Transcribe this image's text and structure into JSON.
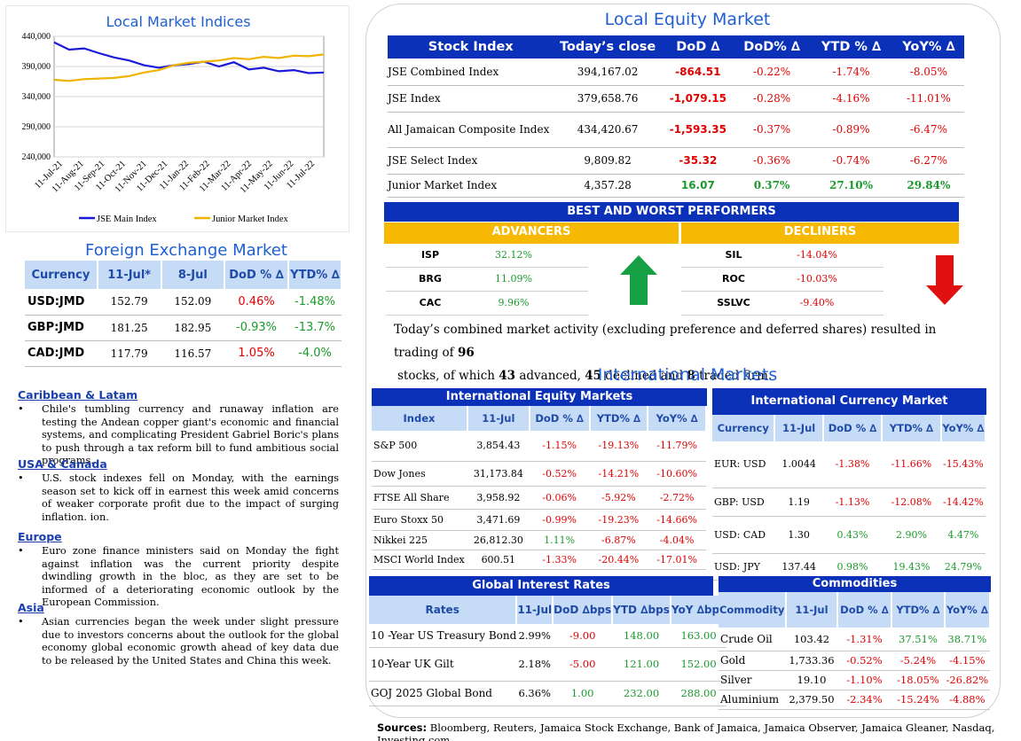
{
  "colors": {
    "dark_blue": "#0b31b8",
    "light_blue": "#c6dbf5",
    "gold": "#f6b800",
    "negative": "#e00000",
    "positive": "#1a9a2a",
    "jse_line": "#1a1ad8",
    "junior_line": "#f0b400"
  },
  "indices_chart": {
    "title": "Local Market Indices"
  },
  "chart_data": {
    "type": "line",
    "title": "Local Market Indices",
    "x_ticks": [
      "11-Jul-21",
      "11-Aug-21",
      "11-Sep-21",
      "11-Oct-21",
      "11-Nov-21",
      "11-Dec-21",
      "11-Jan-22",
      "11-Feb-22",
      "11-Mar-22",
      "11-Apr-22",
      "11-May-22",
      "11-Jun-22",
      "11-Jul-22"
    ],
    "y_ticks": [
      "440,000",
      "390,000",
      "340,000",
      "290,000",
      "240,000"
    ],
    "ylim": [
      240000,
      440000
    ],
    "grid": true,
    "legend_position": "bottom",
    "series": [
      {
        "name": "JSE Main Index",
        "values": [
          430000,
          418000,
          420000,
          412000,
          405000,
          400000,
          392000,
          388000,
          392000,
          394000,
          398000,
          390000,
          397000,
          385000,
          388000,
          382000,
          384000,
          379000,
          380000
        ]
      },
      {
        "name": "Junior Market Index",
        "values": [
          368000,
          366000,
          369000,
          370000,
          371000,
          374000,
          380000,
          384000,
          392000,
          396000,
          398000,
          400000,
          404000,
          402000,
          406000,
          404000,
          408000,
          407000,
          410000
        ]
      }
    ]
  },
  "equity": {
    "title": "Local Equity Market",
    "headers": [
      "Stock Index",
      "Today’s close",
      "DoD  ∆",
      "DoD% ∆",
      "YTD % ∆",
      "YoY% ∆"
    ],
    "rows": [
      {
        "name": "JSE Combined Index",
        "close": "394,167.02",
        "dod": "-864.51",
        "dodp": "-0.22%",
        "ytd": "-1.74%",
        "yoy": "-8.05%",
        "s": [
          "neg",
          "neg",
          "neg",
          "neg"
        ]
      },
      {
        "name": "JSE Index",
        "close": "379,658.76",
        "dod": "-1,079.15",
        "dodp": "-0.28%",
        "ytd": "-4.16%",
        "yoy": "-11.01%",
        "s": [
          "neg",
          "neg",
          "neg",
          "neg"
        ]
      },
      {
        "name": "All Jamaican Composite Index",
        "close": "434,420.67",
        "dod": "-1,593.35",
        "dodp": "-0.37%",
        "ytd": "-0.89%",
        "yoy": "-6.47%",
        "s": [
          "neg",
          "neg",
          "neg",
          "neg"
        ]
      },
      {
        "name": "JSE Select Index",
        "close": "9,809.82",
        "dod": "-35.32",
        "dodp": "-0.36%",
        "ytd": "-0.74%",
        "yoy": "-6.27%",
        "s": [
          "neg",
          "neg",
          "neg",
          "neg"
        ]
      },
      {
        "name": "Junior Market Index",
        "close": "4,357.28",
        "dod": "16.07",
        "dodp": "0.37%",
        "ytd": "27.10%",
        "yoy": "29.84%",
        "s": [
          "pos",
          "pos",
          "pos",
          "pos"
        ]
      }
    ]
  },
  "performers": {
    "title": "BEST AND WORST PERFORMERS",
    "advancers_label": "ADVANCERS",
    "decliners_label": "DECLINERS",
    "advancers": [
      {
        "sym": "ISP",
        "pct": "32.12%"
      },
      {
        "sym": "BRG",
        "pct": "11.09%"
      },
      {
        "sym": "CAC",
        "pct": "9.96%"
      }
    ],
    "decliners": [
      {
        "sym": "SIL",
        "pct": "-14.04%"
      },
      {
        "sym": "ROC",
        "pct": "-10.03%"
      },
      {
        "sym": "SSLVC",
        "pct": "-9.40%"
      }
    ]
  },
  "activity": {
    "p1": "Today’s combined market activity (excluding preference and deferred shares) resulted in trading of ",
    "n_stocks": "96",
    "p2": "stocks, of which ",
    "n_adv": "43",
    "p3": " advanced, ",
    "n_dec": "45",
    "p4": " declined and ",
    "n_firm": "8",
    "p5": " traded firm."
  },
  "fx": {
    "title": "Foreign Exchange Market",
    "headers": [
      "Currency",
      "11-Jul*",
      "8-Jul",
      "DoD % ∆",
      "YTD% ∆"
    ],
    "rows": [
      {
        "pair": "USD:JMD",
        "a": "152.79",
        "b": "152.09",
        "dod": "0.46%",
        "ytd": "-1.48%",
        "s": [
          "neg",
          "pos"
        ]
      },
      {
        "pair": "GBP:JMD",
        "a": "181.25",
        "b": "182.95",
        "dod": "-0.93%",
        "ytd": "-13.7%",
        "s": [
          "pos",
          "pos"
        ]
      },
      {
        "pair": "CAD:JMD",
        "a": "117.79",
        "b": "116.57",
        "dod": "1.05%",
        "ytd": "-4.0%",
        "s": [
          "neg",
          "pos"
        ]
      }
    ]
  },
  "news": [
    {
      "head": "Caribbean & Latam",
      "body": "Chile's tumbling currency and runaway inflation are testing the Andean copper giant's economic and financial systems, and complicating President Gabriel Boric's plans to push through a tax reform bill to fund ambitious social programs."
    },
    {
      "head": "USA & Canada",
      "body": "U.S. stock indexes fell on Monday, with the earnings season set to kick off in earnest this week amid concerns of weaker corporate profit due to the impact of surging inflation. ion."
    },
    {
      "head": "Europe",
      "body": "Euro zone finance ministers said on Monday the fight against inflation was the current priority despite dwindling growth in the bloc, as they are set to be informed of a deteriorating economic outlook by the European Commission."
    },
    {
      "head": "Asia",
      "body": "Asian currencies began the week under slight pressure due to investors concerns about the outlook for the global economy global economic growth ahead of key data due to be released by the United States and China this week."
    }
  ],
  "intl": {
    "title": "International Markets",
    "equity_title": "International Equity Markets",
    "equity_headers": [
      "Index",
      "11-Jul",
      "DoD % ∆",
      "YTD% ∆",
      "YoY% ∆"
    ],
    "equity_rows": [
      {
        "n": "S&P 500",
        "v": "3,854.43",
        "d": "-1.15%",
        "y": "-19.13%",
        "yy": "-11.79%",
        "s": [
          "neg",
          "neg",
          "neg"
        ]
      },
      {
        "n": "Dow Jones",
        "v": "31,173.84",
        "d": "-0.52%",
        "y": "-14.21%",
        "yy": "-10.60%",
        "s": [
          "neg",
          "neg",
          "neg"
        ]
      },
      {
        "n": "FTSE All Share",
        "v": "3,958.92",
        "d": "-0.06%",
        "y": "-5.92%",
        "yy": "-2.72%",
        "s": [
          "neg",
          "neg",
          "neg"
        ]
      },
      {
        "n": "Euro Stoxx 50",
        "v": "3,471.69",
        "d": "-0.99%",
        "y": "-19.23%",
        "yy": "-14.66%",
        "s": [
          "neg",
          "neg",
          "neg"
        ]
      },
      {
        "n": "Nikkei 225",
        "v": "26,812.30",
        "d": "1.11%",
        "y": "-6.87%",
        "yy": "-4.04%",
        "s": [
          "pos",
          "neg",
          "neg"
        ]
      },
      {
        "n": "MSCI World Index",
        "v": "600.51",
        "d": "-1.33%",
        "y": "-20.44%",
        "yy": "-17.01%",
        "s": [
          "neg",
          "neg",
          "neg"
        ]
      }
    ],
    "currency_title": "International Currency Market",
    "currency_headers": [
      "Currency",
      "11-Jul",
      "DoD % ∆",
      "YTD% ∆",
      "YoY% ∆"
    ],
    "currency_rows": [
      {
        "n": "EUR: USD",
        "v": "1.0044",
        "d": "-1.38%",
        "y": "-11.66%",
        "yy": "-15.43%",
        "s": [
          "neg",
          "neg",
          "neg"
        ]
      },
      {
        "n": "GBP: USD",
        "v": "1.19",
        "d": "-1.13%",
        "y": "-12.08%",
        "yy": "-14.42%",
        "s": [
          "neg",
          "neg",
          "neg"
        ]
      },
      {
        "n": "USD: CAD",
        "v": "1.30",
        "d": "0.43%",
        "y": "2.90%",
        "yy": "4.47%",
        "s": [
          "pos",
          "pos",
          "pos"
        ]
      },
      {
        "n": "USD: JPY",
        "v": "137.44",
        "d": "0.98%",
        "y": "19.43%",
        "yy": "24.79%",
        "s": [
          "pos",
          "pos",
          "pos"
        ]
      }
    ],
    "rates_title": "Global Interest Rates",
    "rates_headers": [
      "Rates",
      "11-Jul",
      "DoD ∆bps",
      "YTD ∆bps",
      "YoY ∆bps"
    ],
    "rates_rows": [
      {
        "n": "10 -Year US Treasury Bond",
        "v": "2.99%",
        "d": "-9.00",
        "y": "148.00",
        "yy": "163.00",
        "s": [
          "neg",
          "pos",
          "pos"
        ]
      },
      {
        "n": "10-Year UK Gilt",
        "v": "2.18%",
        "d": "-5.00",
        "y": "121.00",
        "yy": "152.00",
        "s": [
          "neg",
          "pos",
          "pos"
        ]
      },
      {
        "n": "GOJ 2025 Global Bond",
        "v": "6.36%",
        "d": "1.00",
        "y": "232.00",
        "yy": "288.00",
        "s": [
          "pos",
          "pos",
          "pos"
        ]
      }
    ],
    "comm_title": "Commodities",
    "comm_headers": [
      "Commodity",
      "11-Jul",
      "DoD % ∆",
      "YTD% ∆",
      "YoY% ∆"
    ],
    "comm_rows": [
      {
        "n": "Crude Oil",
        "v": "103.42",
        "d": "-1.31%",
        "y": "37.51%",
        "yy": "38.71%",
        "s": [
          "neg",
          "pos",
          "pos"
        ]
      },
      {
        "n": "Gold",
        "v": "1,733.36",
        "d": "-0.52%",
        "y": "-5.24%",
        "yy": "-4.15%",
        "s": [
          "neg",
          "neg",
          "neg"
        ]
      },
      {
        "n": "Silver",
        "v": "19.10",
        "d": "-1.10%",
        "y": "-18.05%",
        "yy": "-26.82%",
        "s": [
          "neg",
          "neg",
          "neg"
        ]
      },
      {
        "n": "Aluminium",
        "v": "2,379.50",
        "d": "-2.34%",
        "y": "-15.24%",
        "yy": "-4.88%",
        "s": [
          "neg",
          "neg",
          "neg"
        ]
      }
    ]
  },
  "sources": {
    "label": "Sources:",
    "text": " Bloomberg, Reuters, Jamaica Stock Exchange, Bank of Jamaica, Jamaica Observer, Jamaica Gleaner, Nasdaq, Investing.com"
  }
}
